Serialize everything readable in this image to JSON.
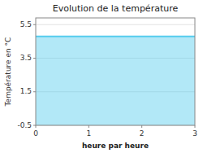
{
  "chart_data": {
    "type": "area",
    "title": "Evolution de la température",
    "xlabel": "heure par heure",
    "ylabel": "Température en °C",
    "x": [
      0,
      3
    ],
    "series": [
      {
        "values": [
          4.8,
          4.8
        ],
        "color": "#55ccee"
      }
    ],
    "xlim": [
      0,
      3
    ],
    "xticks": [
      0,
      1,
      2,
      3
    ],
    "ylim": [
      -0.5,
      5.9
    ],
    "yticks": [
      -0.5,
      1.5,
      3.5,
      5.5
    ],
    "grid": true
  }
}
